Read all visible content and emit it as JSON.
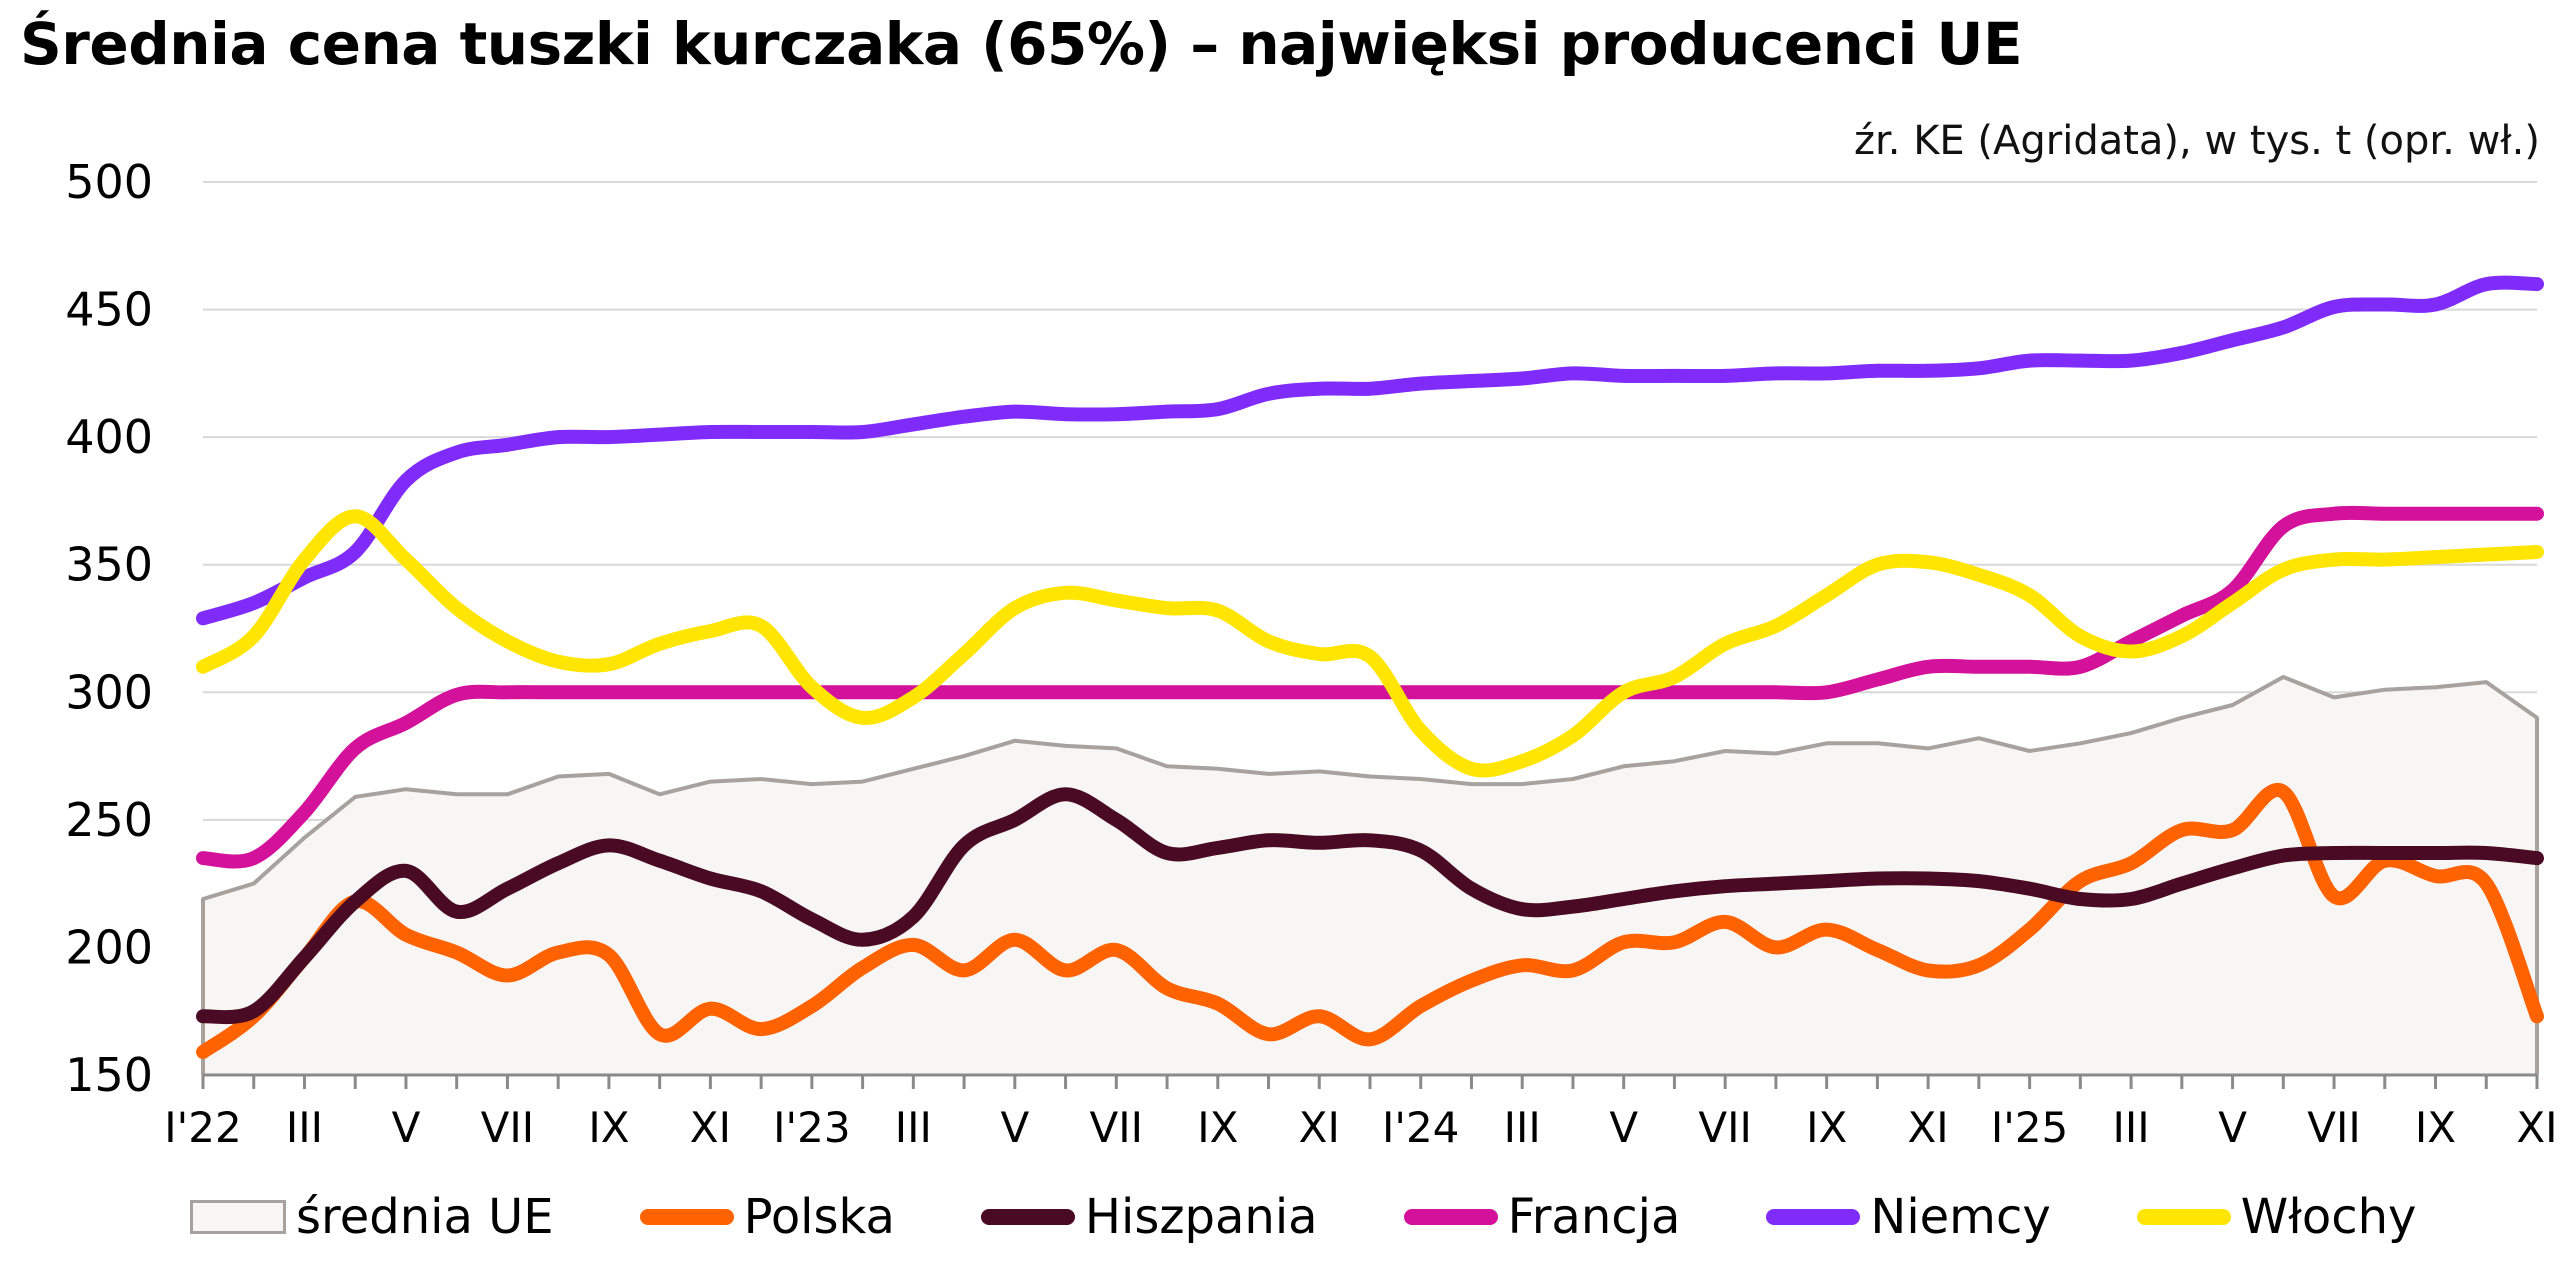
{
  "chart_data": {
    "type": "line",
    "title": "Średnia cena tuszki kurczaka (65%) – najwięksi producenci UE",
    "subtitle": "źr. KE (Agridata), w tys. t (opr. wł.)",
    "ylim": [
      150,
      500
    ],
    "yticks": [
      "150",
      "200",
      "250",
      "300",
      "350",
      "400",
      "450",
      "500"
    ],
    "xtick_labels": [
      "I'22",
      "III",
      "V",
      "VII",
      "IX",
      "XI",
      "I'23",
      "III",
      "V",
      "VII",
      "IX",
      "XI",
      "I'24",
      "III",
      "V",
      "VII",
      "IX",
      "XI",
      "I'25",
      "III",
      "V",
      "VII",
      "IX",
      "XI"
    ],
    "grid": "horizontal",
    "legend_position": "bottom",
    "x": [
      "I'22",
      "II'22",
      "III'22",
      "IV'22",
      "V'22",
      "VI'22",
      "VII'22",
      "VIII'22",
      "IX'22",
      "X'22",
      "XI'22",
      "XII'22",
      "I'23",
      "II'23",
      "III'23",
      "IV'23",
      "V'23",
      "VI'23",
      "VII'23",
      "VIII'23",
      "IX'23",
      "X'23",
      "XI'23",
      "XII'23",
      "I'24",
      "II'24",
      "III'24",
      "IV'24",
      "V'24",
      "VI'24",
      "VII'24",
      "VIII'24",
      "IX'24",
      "X'24",
      "XI'24",
      "XII'24",
      "I'25",
      "II'25",
      "III'25",
      "IV'25",
      "V'25",
      "VI'25",
      "VII'25",
      "VIII'25",
      "IX'25",
      "X'25",
      "XI'25"
    ],
    "series": [
      {
        "name": "średnia UE",
        "kind": "area",
        "color": "#a8a29e",
        "fill": "#f7f6f5",
        "values": [
          219,
          225,
          243,
          259,
          262,
          260,
          260,
          267,
          268,
          260,
          265,
          266,
          264,
          265,
          270,
          275,
          281,
          279,
          278,
          271,
          270,
          268,
          269,
          267,
          266,
          264,
          264,
          266,
          271,
          273,
          277,
          276,
          280,
          280,
          278,
          282,
          277,
          280,
          284,
          290,
          295,
          306,
          298,
          301,
          302,
          304,
          290
        ]
      },
      {
        "name": "Polska",
        "kind": "line",
        "color": "#ff6200",
        "values": [
          159,
          173,
          196,
          218,
          205,
          198,
          189,
          198,
          197,
          166,
          176,
          168,
          177,
          192,
          201,
          191,
          203,
          191,
          199,
          184,
          178,
          166,
          173,
          164,
          177,
          187,
          193,
          191,
          202,
          202,
          210,
          200,
          207,
          199,
          191,
          193,
          207,
          226,
          233,
          246,
          246,
          261,
          220,
          234,
          228,
          225,
          173
        ]
      },
      {
        "name": "Hiszpania",
        "kind": "line",
        "color": "#4a0a23",
        "values": [
          173,
          175,
          196,
          218,
          230,
          214,
          223,
          233,
          240,
          234,
          227,
          222,
          211,
          203,
          212,
          240,
          250,
          260,
          250,
          237,
          239,
          242,
          241,
          242,
          238,
          223,
          215,
          216,
          219,
          222,
          224,
          225,
          226,
          227,
          227,
          226,
          223,
          219,
          219,
          225,
          231,
          236,
          237,
          237,
          237,
          237,
          235
        ]
      },
      {
        "name": "Francja",
        "kind": "line",
        "color": "#d3119b",
        "values": [
          235,
          235,
          253,
          278,
          288,
          299,
          300,
          300,
          300,
          300,
          300,
          300,
          300,
          300,
          300,
          300,
          300,
          300,
          300,
          300,
          300,
          300,
          300,
          300,
          300,
          300,
          300,
          300,
          300,
          300,
          300,
          300,
          300,
          305,
          310,
          310,
          310,
          310,
          320,
          330,
          340,
          365,
          370,
          370,
          370,
          370,
          370
        ]
      },
      {
        "name": "Niemcy",
        "kind": "line",
        "color": "#7f2bfa",
        "values": [
          329,
          335,
          345,
          355,
          383,
          394,
          397,
          400,
          400,
          401,
          402,
          402,
          402,
          402,
          405,
          408,
          410,
          409,
          409,
          410,
          411,
          417,
          419,
          419,
          421,
          422,
          423,
          425,
          424,
          424,
          424,
          425,
          425,
          426,
          426,
          427,
          430,
          430,
          430,
          433,
          438,
          443,
          451,
          452,
          452,
          460,
          460
        ]
      },
      {
        "name": "Włochy",
        "kind": "line",
        "color": "#ffe500",
        "values": [
          310,
          322,
          352,
          369,
          352,
          333,
          320,
          312,
          311,
          319,
          324,
          326,
          302,
          290,
          298,
          315,
          333,
          339,
          336,
          333,
          332,
          320,
          315,
          314,
          285,
          270,
          273,
          283,
          300,
          306,
          319,
          326,
          338,
          350,
          351,
          346,
          338,
          322,
          316,
          322,
          335,
          348,
          352,
          352,
          353,
          354,
          355
        ]
      }
    ]
  }
}
